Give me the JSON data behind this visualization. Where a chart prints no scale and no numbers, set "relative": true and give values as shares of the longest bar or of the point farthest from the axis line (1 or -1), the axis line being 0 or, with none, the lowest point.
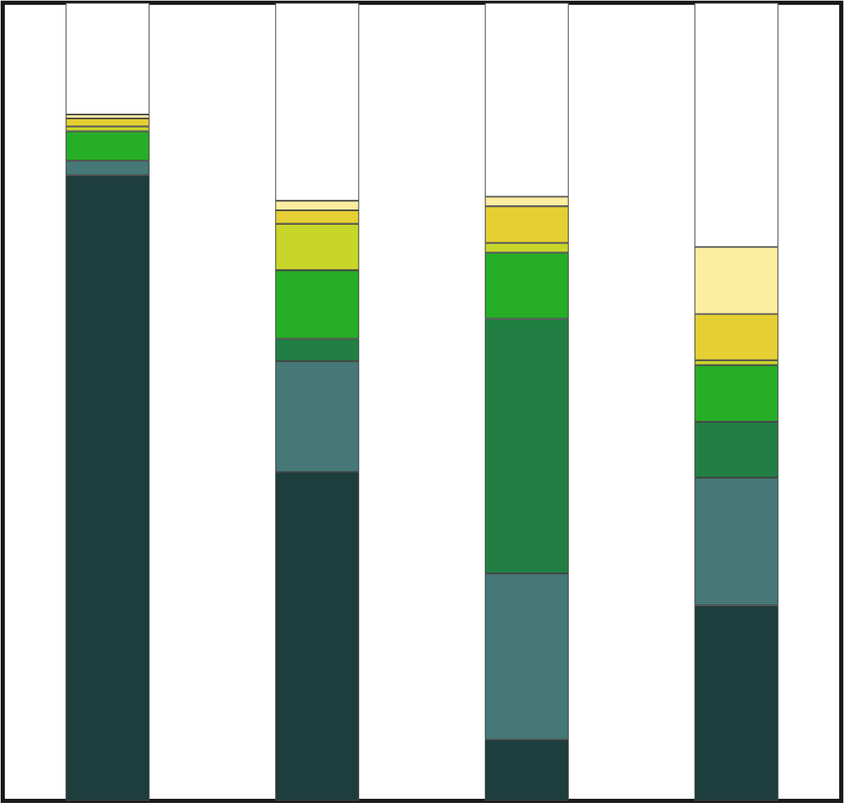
{
  "chart_data": {
    "type": "bar",
    "stacked": true,
    "relative": true,
    "tick_labels": false,
    "categories": [
      null,
      null,
      null,
      null
    ],
    "series": [
      {
        "color": "#1e3d3d",
        "values": [
          0.784,
          0.412,
          0.077,
          0.245
        ]
      },
      {
        "color": "#457876",
        "values": [
          0.018,
          0.139,
          0.208,
          0.16
        ]
      },
      {
        "color": "#217f44",
        "values": [
          null,
          0.028,
          0.319,
          0.07
        ]
      },
      {
        "color": "#27ae27",
        "values": [
          0.037,
          0.086,
          0.083,
          0.071
        ]
      },
      {
        "color": "#c8d62a",
        "values": [
          0.006,
          0.058,
          0.012,
          0.006
        ]
      },
      {
        "color": "#e5cf33",
        "values": [
          0.01,
          0.017,
          0.046,
          0.058
        ]
      },
      {
        "color": "#fdeda0",
        "values": [
          0.005,
          0.012,
          0.012,
          0.084
        ]
      },
      {
        "color": "#ffffff",
        "values": [
          0.14,
          0.248,
          0.243,
          0.306
        ]
      }
    ]
  }
}
